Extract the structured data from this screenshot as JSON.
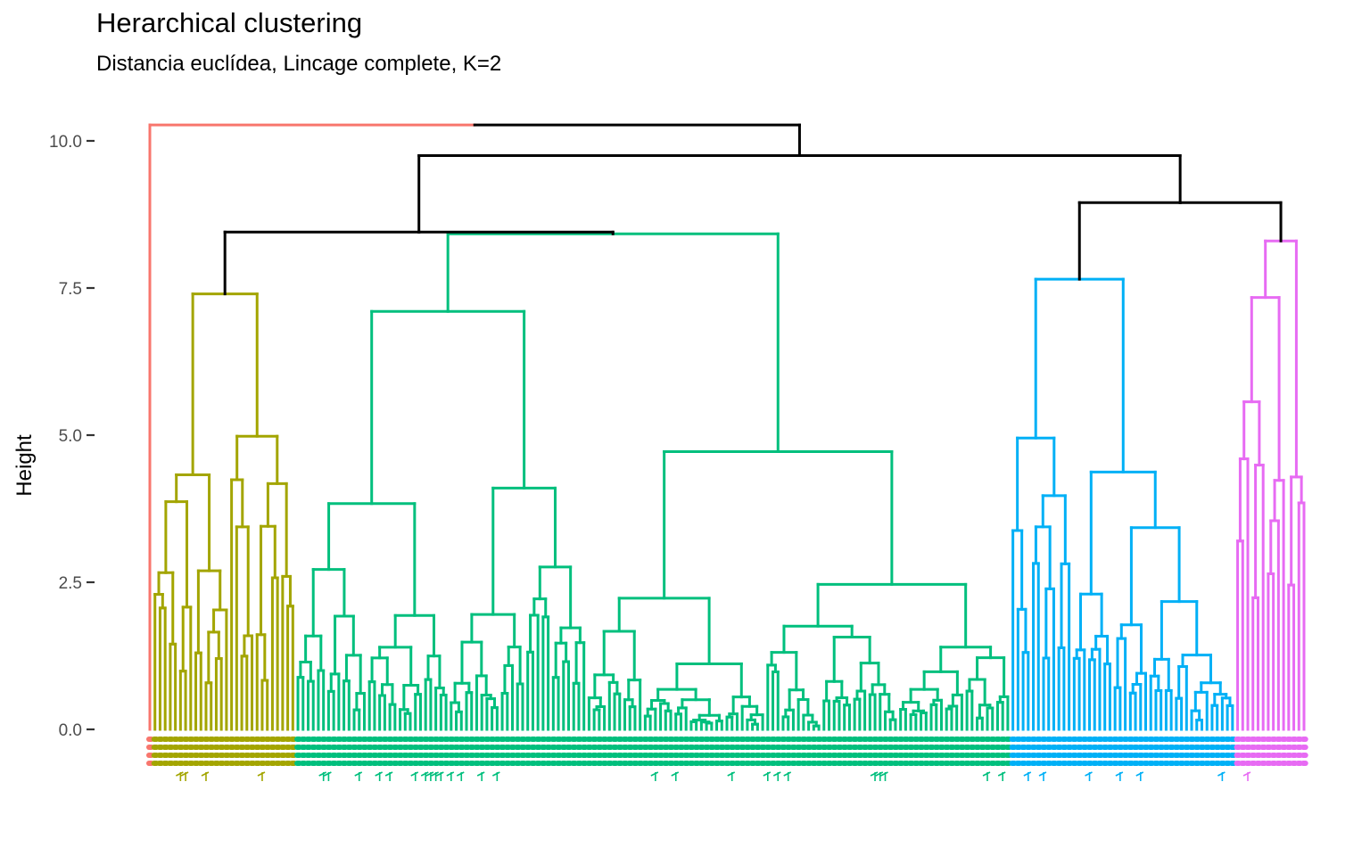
{
  "chart_data": {
    "type": "dendrogram",
    "title": "Herarchical clustering",
    "subtitle": "Distancia euclídea, Lincage complete, K=2",
    "ylabel": "Height",
    "xlabel": "",
    "ylim": [
      0,
      10.3
    ],
    "y_ticks": [
      {
        "value": 0.0,
        "label": "0.0"
      },
      {
        "value": 2.5,
        "label": "2.5"
      },
      {
        "value": 5.0,
        "label": "5.0"
      },
      {
        "value": 7.5,
        "label": "7.5"
      },
      {
        "value": 10.0,
        "label": "10.0"
      }
    ],
    "grid": false,
    "root_height": 10.27,
    "top_merges": [
      {
        "height": 10.27,
        "joins": [
          "outlier",
          "main"
        ]
      },
      {
        "height": 9.75,
        "joins": [
          "left_group",
          "right_group"
        ]
      },
      {
        "height": 8.95,
        "joins": [
          "blue",
          "magenta"
        ]
      },
      {
        "height": 8.45,
        "joins": [
          "olive",
          "green"
        ]
      }
    ],
    "clusters": [
      {
        "id": "outlier",
        "color": "#F8766D",
        "leaves": 1,
        "height": 0.0
      },
      {
        "id": "olive",
        "color": "#A3A500",
        "leaves": 28,
        "height": 7.4
      },
      {
        "id": "green",
        "color": "#00BF7D",
        "leaves": 140,
        "height": 8.42
      },
      {
        "id": "blue",
        "color": "#00B0F6",
        "leaves": 44,
        "height": 7.65
      },
      {
        "id": "magenta",
        "color": "#E76BF3",
        "leaves": 14,
        "height": 8.3
      }
    ],
    "branch_color_top": "#000000"
  }
}
